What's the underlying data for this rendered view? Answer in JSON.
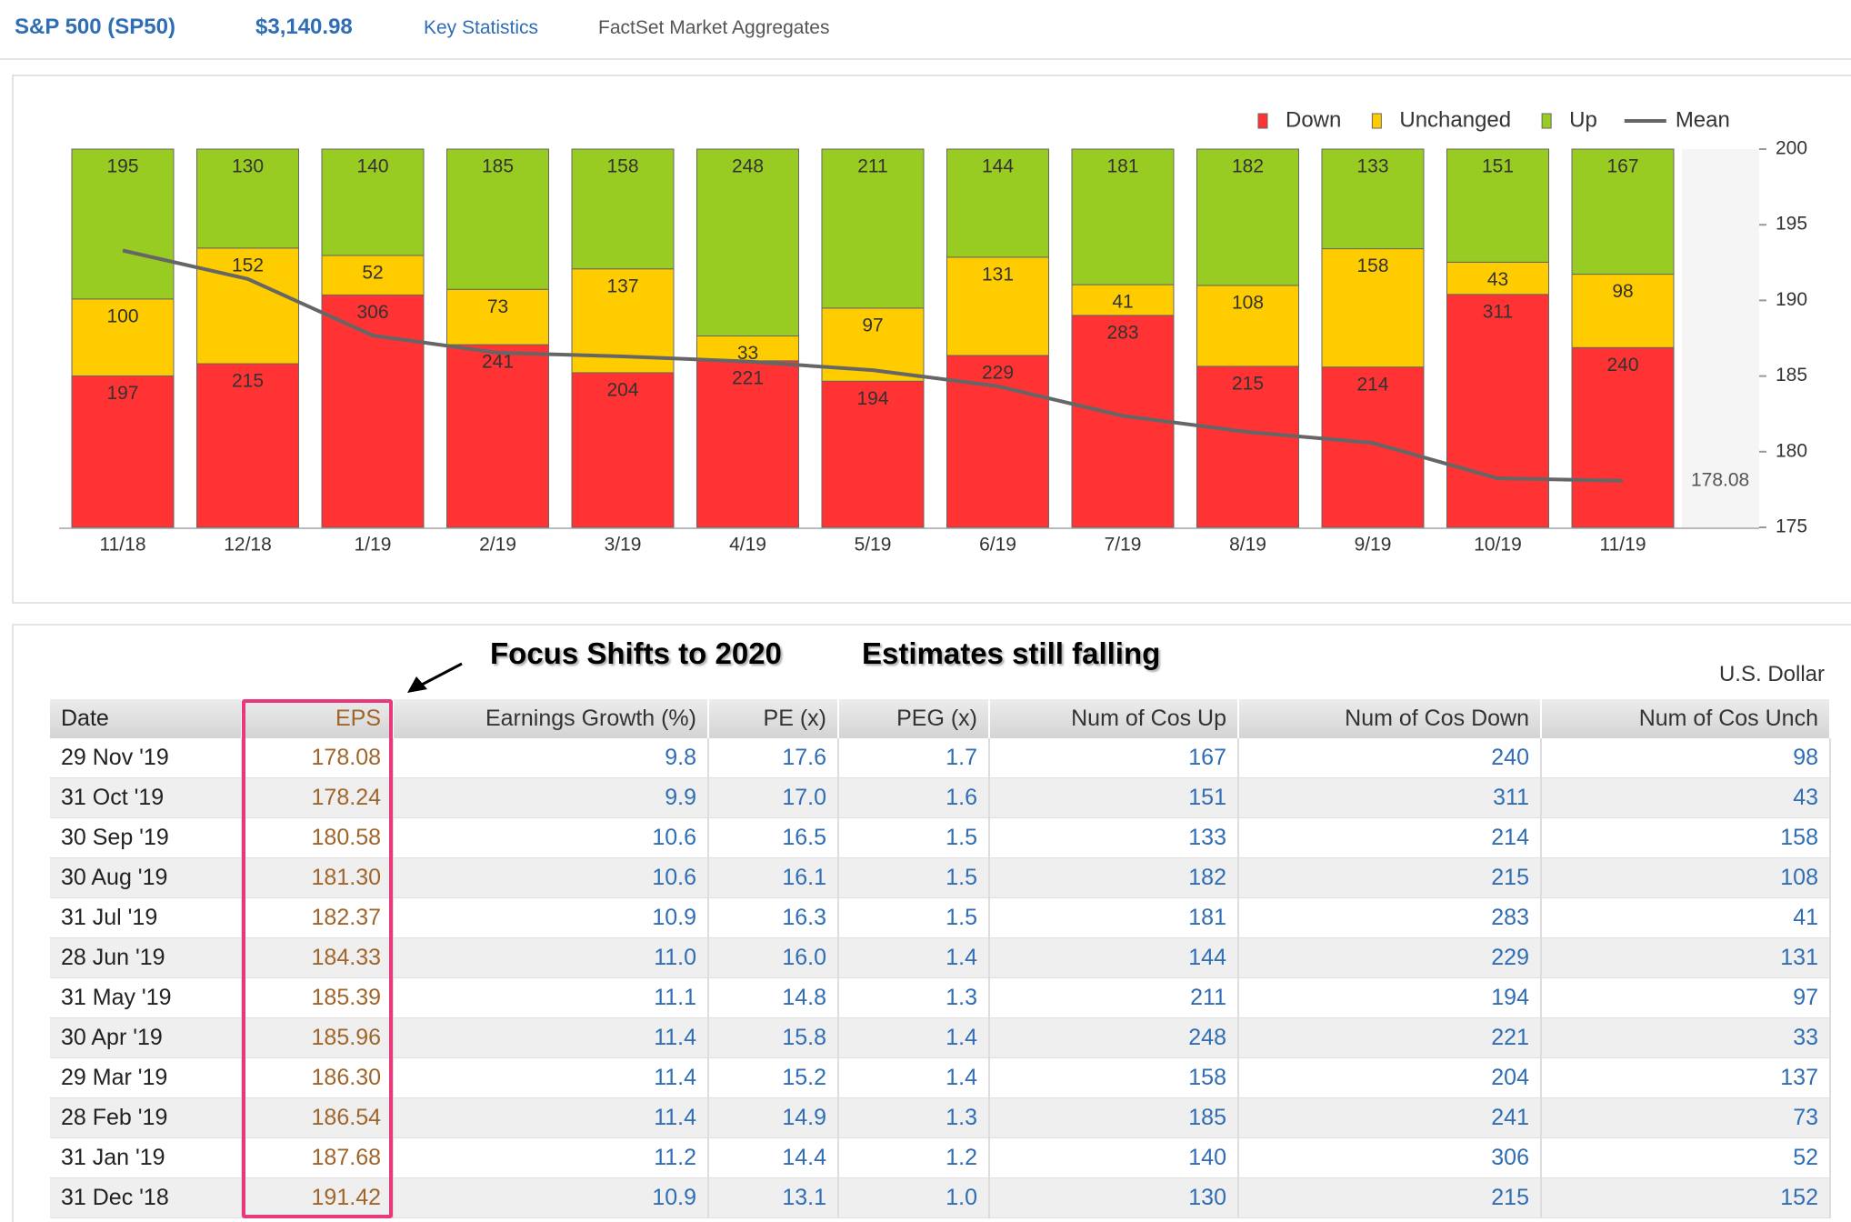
{
  "header": {
    "title": "S&P 500 (SP50)",
    "price": "$3,140.98",
    "tabs": [
      "Key Statistics",
      "FactSet Market Aggregates"
    ]
  },
  "chart_data": {
    "type": "bar",
    "stacked": "percent",
    "categories": [
      "11/18",
      "12/18",
      "1/19",
      "2/19",
      "3/19",
      "4/19",
      "5/19",
      "6/19",
      "7/19",
      "8/19",
      "9/19",
      "10/19",
      "11/19"
    ],
    "series": [
      {
        "name": "Down",
        "color": "#ff3333",
        "values": [
          197,
          215,
          306,
          241,
          204,
          221,
          194,
          229,
          283,
          215,
          214,
          311,
          240
        ]
      },
      {
        "name": "Unchanged",
        "color": "#ffcc00",
        "values": [
          100,
          152,
          52,
          73,
          137,
          33,
          97,
          131,
          41,
          108,
          158,
          43,
          98
        ]
      },
      {
        "name": "Up",
        "color": "#99cc22",
        "values": [
          195,
          130,
          140,
          185,
          158,
          248,
          211,
          144,
          181,
          182,
          133,
          151,
          167
        ]
      },
      {
        "name": "Mean",
        "color": "#666666",
        "type": "line",
        "axis": "y2",
        "values": [
          193.3,
          191.42,
          187.68,
          186.54,
          186.3,
          185.96,
          185.39,
          184.33,
          182.37,
          181.3,
          180.58,
          178.24,
          178.08
        ]
      }
    ],
    "y2lim": [
      175,
      200
    ],
    "y2ticks": [
      175,
      180,
      185,
      190,
      195,
      200
    ],
    "legend": "top-right"
  },
  "annotations": [
    "Focus Shifts to 2020",
    "Estimates still falling"
  ],
  "currency": "U.S. Dollar",
  "table": {
    "columns": [
      "Date",
      "EPS",
      "Earnings Growth (%)",
      "PE (x)",
      "PEG (x)",
      "Num of Cos Up",
      "Num of Cos Down",
      "Num of Cos Unch"
    ],
    "rows": [
      [
        "29 Nov '19",
        "178.08",
        "9.8",
        "17.6",
        "1.7",
        "167",
        "240",
        "98"
      ],
      [
        "31 Oct '19",
        "178.24",
        "9.9",
        "17.0",
        "1.6",
        "151",
        "311",
        "43"
      ],
      [
        "30 Sep '19",
        "180.58",
        "10.6",
        "16.5",
        "1.5",
        "133",
        "214",
        "158"
      ],
      [
        "30 Aug '19",
        "181.30",
        "10.6",
        "16.1",
        "1.5",
        "182",
        "215",
        "108"
      ],
      [
        "31 Jul '19",
        "182.37",
        "10.9",
        "16.3",
        "1.5",
        "181",
        "283",
        "41"
      ],
      [
        "28 Jun '19",
        "184.33",
        "11.0",
        "16.0",
        "1.4",
        "144",
        "229",
        "131"
      ],
      [
        "31 May '19",
        "185.39",
        "11.1",
        "14.8",
        "1.3",
        "211",
        "194",
        "97"
      ],
      [
        "30 Apr '19",
        "185.96",
        "11.4",
        "15.8",
        "1.4",
        "248",
        "221",
        "33"
      ],
      [
        "29 Mar '19",
        "186.30",
        "11.4",
        "15.2",
        "1.4",
        "158",
        "204",
        "137"
      ],
      [
        "28 Feb '19",
        "186.54",
        "11.4",
        "14.9",
        "1.3",
        "185",
        "241",
        "73"
      ],
      [
        "31 Jan '19",
        "187.68",
        "11.2",
        "14.4",
        "1.2",
        "140",
        "306",
        "52"
      ],
      [
        "31 Dec '18",
        "191.42",
        "10.9",
        "13.1",
        "1.0",
        "130",
        "215",
        "152"
      ]
    ]
  }
}
